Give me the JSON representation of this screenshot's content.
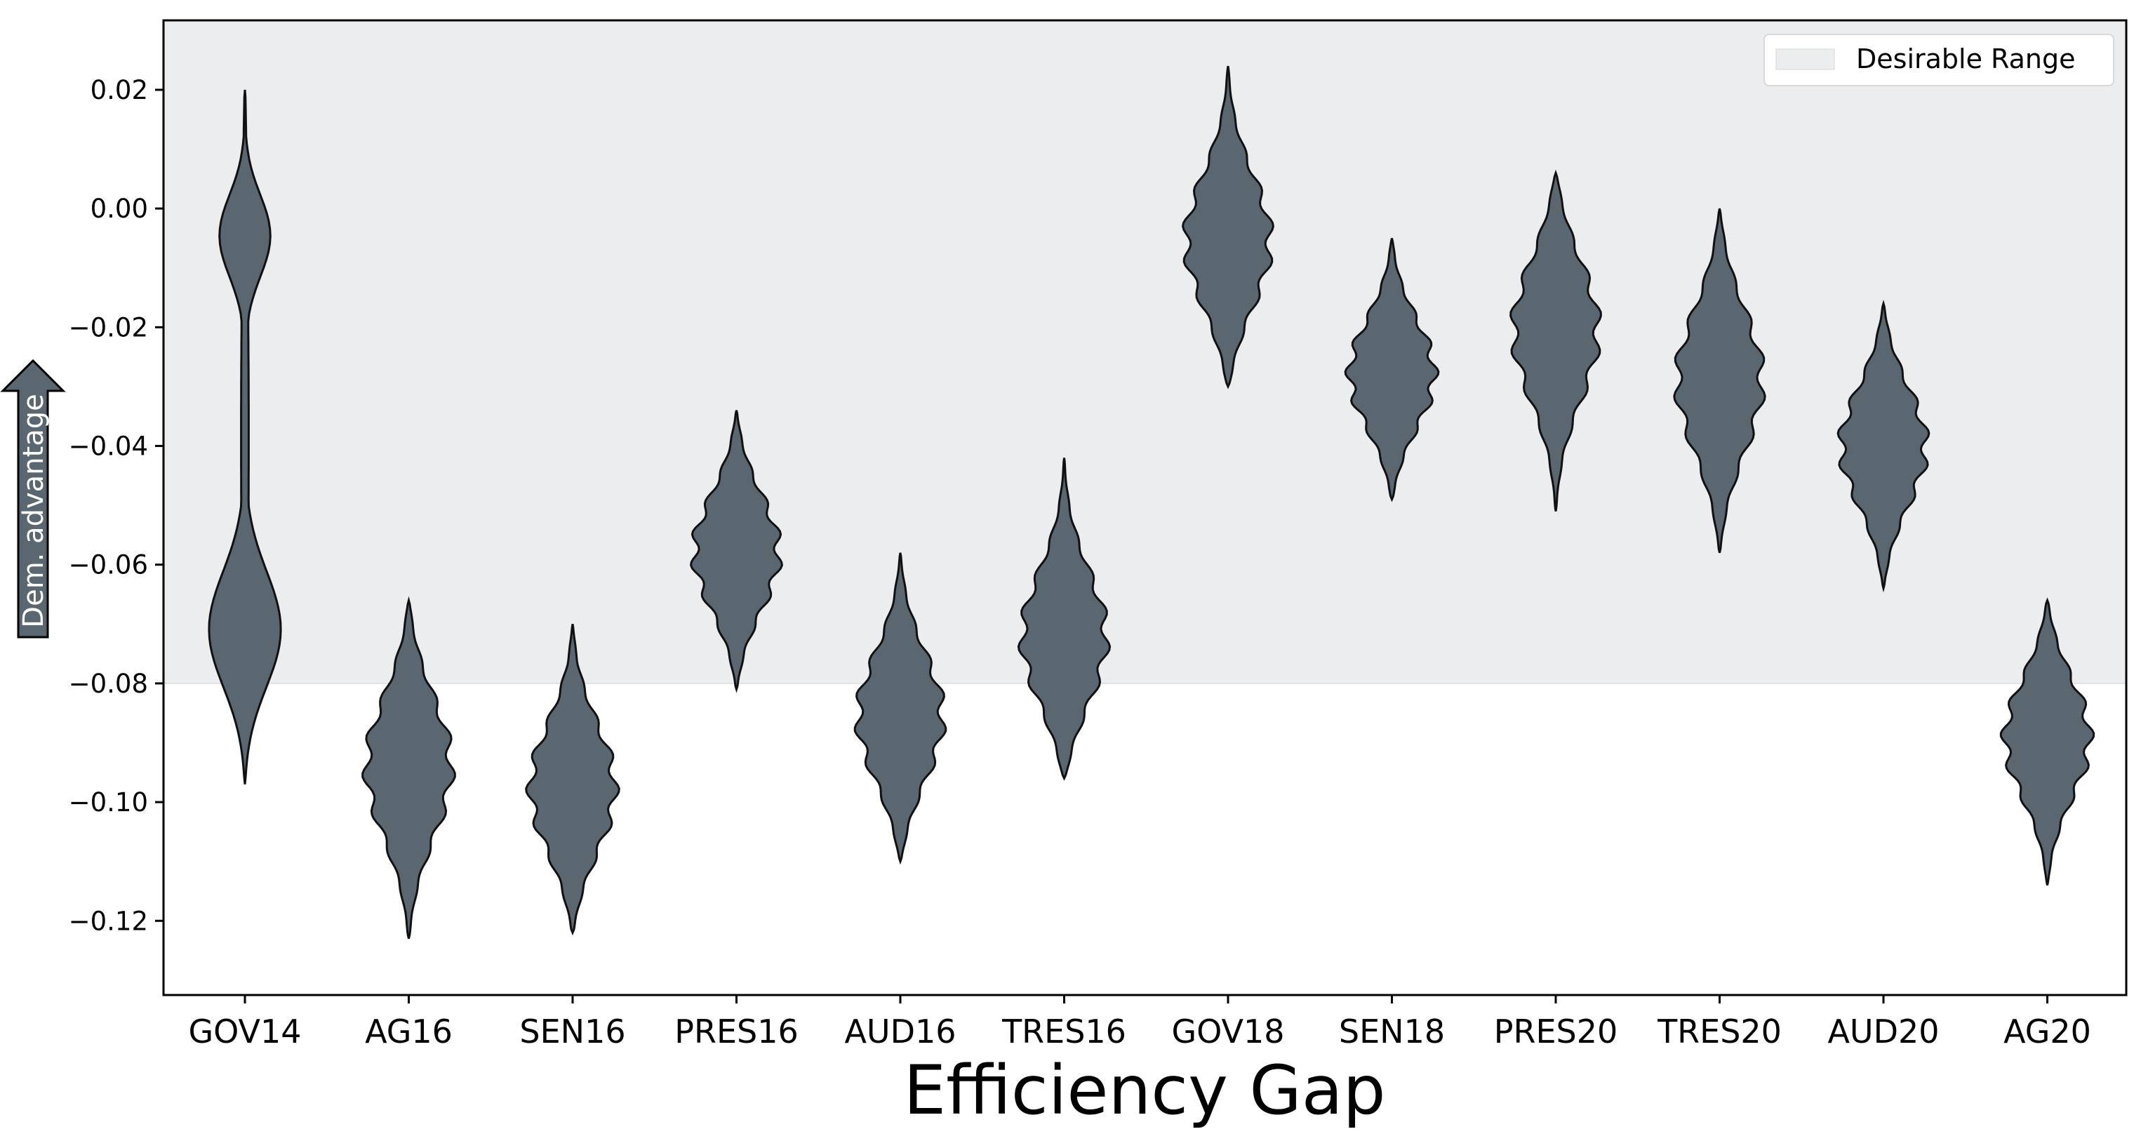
{
  "chart_data": {
    "type": "violin",
    "categories": [
      "GOV14",
      "AG16",
      "SEN16",
      "PRES16",
      "AUD16",
      "TRES16",
      "GOV18",
      "SEN18",
      "PRES20",
      "TRES20",
      "AUD20",
      "AG20"
    ],
    "xlabel": "Efficiency Gap",
    "ylabel_arrow": "Dem. advantage",
    "ylim": [
      -0.1325,
      0.0317
    ],
    "yticks": [
      0.02,
      0.0,
      -0.02,
      -0.04,
      -0.06,
      -0.08,
      -0.1,
      -0.12
    ],
    "ytick_labels": [
      "0.02",
      "0.00",
      "−0.02",
      "−0.04",
      "−0.06",
      "−0.08",
      "−0.10",
      "−0.12"
    ],
    "legend": {
      "label": "Desirable Range",
      "placement": "upper right"
    },
    "desirable_range": [
      -0.08,
      0.0317
    ],
    "violin_color": "#5a6670",
    "range_color": "#ecedef",
    "arrow_color": "#5a6670",
    "series": [
      {
        "category": "GOV14",
        "min": -0.097,
        "max": 0.02,
        "median": -0.038,
        "modes": [
          -0.072,
          -0.004
        ]
      },
      {
        "category": "AG16",
        "min": -0.123,
        "max": -0.066,
        "median": -0.094
      },
      {
        "category": "SEN16",
        "min": -0.122,
        "max": -0.07,
        "median": -0.098
      },
      {
        "category": "PRES16",
        "min": -0.081,
        "max": -0.034,
        "median": -0.058
      },
      {
        "category": "AUD16",
        "min": -0.11,
        "max": -0.058,
        "median": -0.086
      },
      {
        "category": "TRES16",
        "min": -0.096,
        "max": -0.042,
        "median": -0.073
      },
      {
        "category": "GOV18",
        "min": -0.03,
        "max": 0.024,
        "median": -0.006
      },
      {
        "category": "SEN18",
        "min": -0.049,
        "max": -0.005,
        "median": -0.028
      },
      {
        "category": "PRES20",
        "min": -0.051,
        "max": 0.006,
        "median": -0.02
      },
      {
        "category": "TRES20",
        "min": -0.058,
        "max": 0.0,
        "median": -0.029
      },
      {
        "category": "AUD20",
        "min": -0.064,
        "max": -0.016,
        "median": -0.04
      },
      {
        "category": "AG20",
        "min": -0.114,
        "max": -0.066,
        "median": -0.089
      }
    ]
  }
}
